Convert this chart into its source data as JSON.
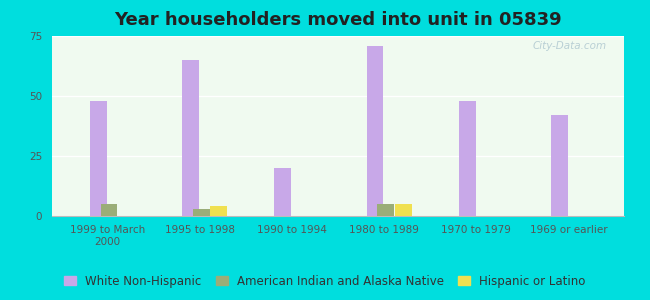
{
  "title": "Year householders moved into unit in 05839",
  "categories": [
    "1999 to March\n2000",
    "1995 to 1998",
    "1990 to 1994",
    "1980 to 1989",
    "1970 to 1979",
    "1969 or earlier"
  ],
  "white_non_hispanic": [
    48,
    65,
    20,
    71,
    48,
    42
  ],
  "american_indian": [
    5,
    3,
    0,
    5,
    0,
    0
  ],
  "hispanic": [
    0,
    4,
    0,
    5,
    0,
    0
  ],
  "bar_width": 0.18,
  "colors": {
    "white": "#c8a8e8",
    "indian": "#9aad78",
    "hispanic": "#f0e050"
  },
  "ylim": [
    0,
    75
  ],
  "yticks": [
    0,
    25,
    50,
    75
  ],
  "background_top": "#f0faf0",
  "background_bottom": "#e0f5e0",
  "outer_background": "#00dede",
  "title_fontsize": 13,
  "tick_fontsize": 7.5,
  "legend_fontsize": 8.5
}
